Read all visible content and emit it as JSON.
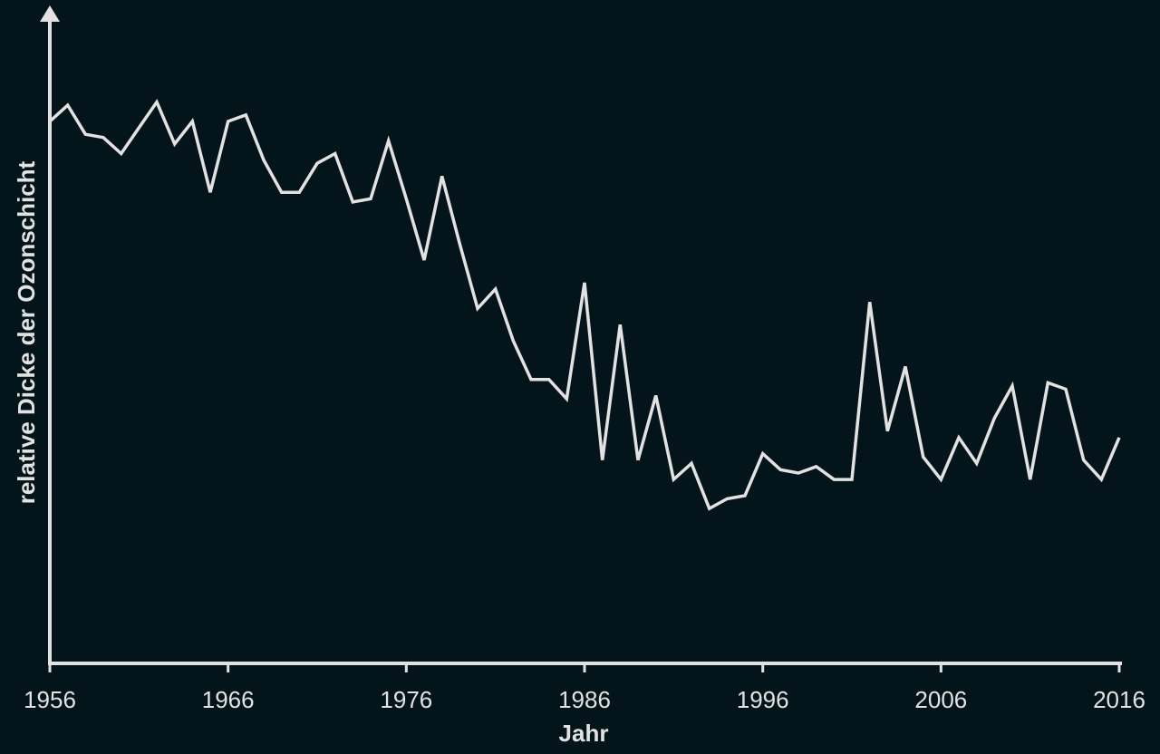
{
  "colors": {
    "background": "#03141a",
    "foreground": "#e2e2e2"
  },
  "chart_data": {
    "type": "line",
    "xlabel": "Jahr",
    "ylabel": "relative Dicke der Ozonschicht",
    "xlim": [
      1956,
      2016
    ],
    "ylim": [
      0,
      100
    ],
    "x_ticks": [
      1956,
      1966,
      1976,
      1986,
      1996,
      2006,
      2016
    ],
    "y_ticks_shown": false,
    "grid": false,
    "series": [
      {
        "x": [
          1956,
          1957,
          1958,
          1959,
          1960,
          1961,
          1962,
          1963,
          1964,
          1965,
          1966,
          1967,
          1968,
          1969,
          1970,
          1971,
          1972,
          1973,
          1974,
          1975,
          1976,
          1977,
          1978,
          1979,
          1980,
          1981,
          1982,
          1983,
          1984,
          1985,
          1986,
          1987,
          1988,
          1989,
          1990,
          1991,
          1992,
          1993,
          1994,
          1995,
          1996,
          1997,
          1998,
          1999,
          2000,
          2001,
          2002,
          2003,
          2004,
          2005,
          2006,
          2007,
          2008,
          2009,
          2010,
          2011,
          2012,
          2013,
          2014,
          2015,
          2016
        ],
        "y": [
          84,
          86.5,
          82,
          81.5,
          79,
          83,
          87,
          80.5,
          84,
          73,
          84,
          85,
          78,
          73,
          73,
          77.5,
          79,
          71.5,
          72,
          81,
          72,
          62.5,
          75.5,
          65,
          55,
          58,
          50,
          44,
          44,
          41,
          59,
          31.5,
          52.5,
          31.5,
          41.5,
          28.5,
          31,
          24,
          25.5,
          26,
          32.5,
          30,
          29.5,
          30.5,
          28.5,
          28.5,
          56,
          36,
          46,
          32,
          28.5,
          35,
          31,
          38,
          43,
          28.5,
          43.5,
          42.5,
          31.5,
          28.5,
          35
        ]
      }
    ]
  }
}
